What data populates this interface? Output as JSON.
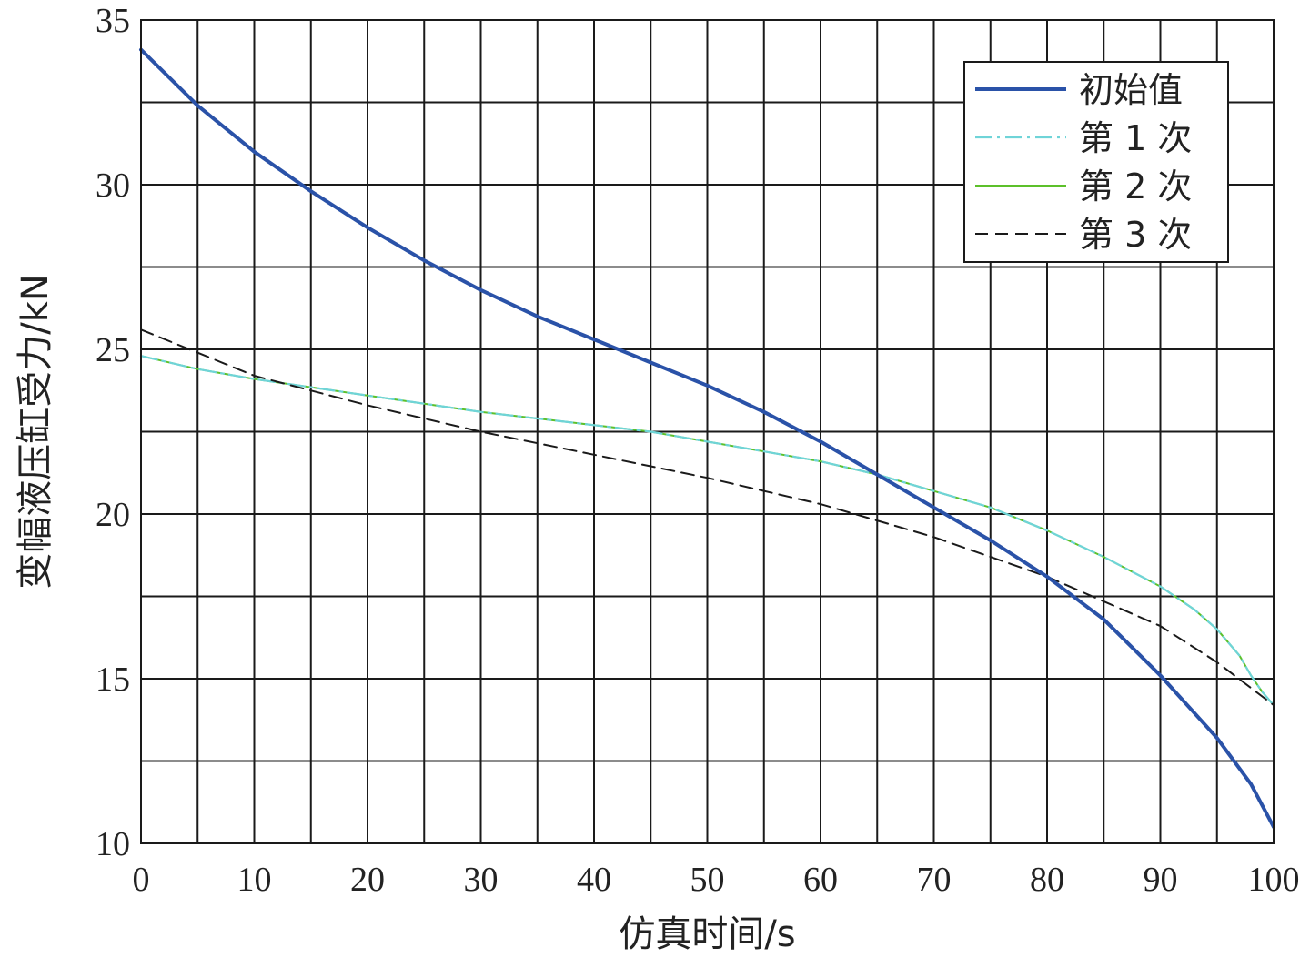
{
  "chart_data": {
    "type": "line",
    "xlabel": "仿真时间/s",
    "ylabel": "变幅液压缸受力/kN",
    "xlim": [
      0,
      100
    ],
    "ylim": [
      10,
      35
    ],
    "xticks": [
      0,
      10,
      20,
      30,
      40,
      50,
      60,
      70,
      80,
      90,
      100
    ],
    "yticks": [
      10,
      15,
      20,
      25,
      30,
      35
    ],
    "grid": true,
    "grid_x_step": 5,
    "grid_y_step": 2.5,
    "legend_position": "top-right",
    "series": [
      {
        "name": "初始值",
        "color": "#2a52a8",
        "style": "solid-thick",
        "x": [
          0,
          5,
          10,
          15,
          20,
          25,
          30,
          35,
          40,
          45,
          50,
          55,
          60,
          65,
          70,
          75,
          80,
          85,
          90,
          95,
          98,
          100
        ],
        "y": [
          34.1,
          32.4,
          31.0,
          29.8,
          28.7,
          27.7,
          26.8,
          26.0,
          25.3,
          24.6,
          23.9,
          23.1,
          22.2,
          21.2,
          20.2,
          19.2,
          18.1,
          16.8,
          15.1,
          13.2,
          11.8,
          10.5
        ]
      },
      {
        "name": "第 1 次",
        "color": "#6fd4d8",
        "style": "dashdot",
        "x": [
          0,
          5,
          10,
          15,
          20,
          25,
          30,
          35,
          40,
          45,
          50,
          55,
          60,
          65,
          70,
          75,
          80,
          85,
          90,
          93,
          95,
          97,
          98,
          99,
          100
        ],
        "y": [
          24.8,
          24.4,
          24.1,
          23.85,
          23.6,
          23.35,
          23.1,
          22.9,
          22.7,
          22.5,
          22.2,
          21.9,
          21.6,
          21.2,
          20.7,
          20.2,
          19.5,
          18.7,
          17.8,
          17.1,
          16.5,
          15.7,
          15.1,
          14.6,
          14.2
        ]
      },
      {
        "name": "第 2 次",
        "color": "#5cc02a",
        "style": "solid-thin",
        "x": [
          0,
          5,
          10,
          15,
          20,
          25,
          30,
          35,
          40,
          45,
          50,
          55,
          60,
          65,
          70,
          75,
          80,
          85,
          90,
          93,
          95,
          97,
          98,
          99,
          100
        ],
        "y": [
          24.8,
          24.4,
          24.1,
          23.85,
          23.6,
          23.35,
          23.1,
          22.9,
          22.7,
          22.5,
          22.2,
          21.9,
          21.6,
          21.2,
          20.7,
          20.2,
          19.5,
          18.7,
          17.8,
          17.1,
          16.5,
          15.7,
          15.1,
          14.6,
          14.2
        ]
      },
      {
        "name": "第 3 次",
        "color": "#1a1a1a",
        "style": "dashed",
        "x": [
          0,
          10,
          20,
          30,
          40,
          50,
          60,
          70,
          80,
          90,
          95,
          100
        ],
        "y": [
          25.6,
          24.2,
          23.3,
          22.5,
          21.8,
          21.1,
          20.3,
          19.3,
          18.1,
          16.6,
          15.5,
          14.2
        ]
      }
    ]
  }
}
